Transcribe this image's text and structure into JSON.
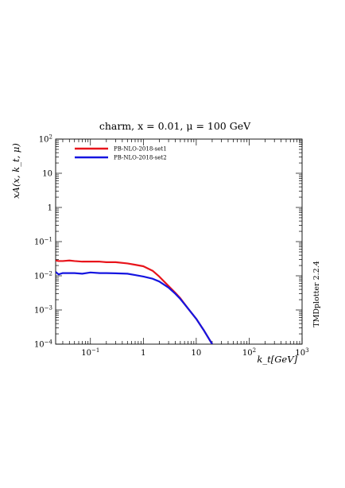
{
  "chart_data": {
    "type": "line",
    "title": "charm, x = 0.01, μ = 100 GeV",
    "xlabel": "k_t[GeV]",
    "ylabel": "xA(x, k_t, μ)",
    "xscale": "log",
    "yscale": "log",
    "xlim": [
      0.022,
      1000
    ],
    "ylim": [
      0.0001,
      100
    ],
    "x_ticks": [
      {
        "value": 0.1,
        "label": "10^-1"
      },
      {
        "value": 1,
        "label": "1"
      },
      {
        "value": 10,
        "label": "10"
      },
      {
        "value": 100,
        "label": "10^2"
      },
      {
        "value": 1000,
        "label": "10^3"
      }
    ],
    "y_ticks": [
      {
        "value": 0.0001,
        "label": "10^-4"
      },
      {
        "value": 0.001,
        "label": "10^-3"
      },
      {
        "value": 0.01,
        "label": "10^-2"
      },
      {
        "value": 0.1,
        "label": "10^-1"
      },
      {
        "value": 1,
        "label": "1"
      },
      {
        "value": 10,
        "label": "10"
      },
      {
        "value": 100,
        "label": "10^2"
      }
    ],
    "legend_position": "top-left",
    "grid": false,
    "series": [
      {
        "name": "PB-NLO-2018-set1",
        "color": "#e8141b",
        "points": [
          [
            0.022,
            0.028
          ],
          [
            0.025,
            0.027
          ],
          [
            0.03,
            0.027
          ],
          [
            0.04,
            0.028
          ],
          [
            0.05,
            0.027
          ],
          [
            0.07,
            0.026
          ],
          [
            0.1,
            0.026
          ],
          [
            0.15,
            0.026
          ],
          [
            0.2,
            0.025
          ],
          [
            0.3,
            0.025
          ],
          [
            0.5,
            0.023
          ],
          [
            0.7,
            0.021
          ],
          [
            1.0,
            0.019
          ],
          [
            1.5,
            0.014
          ],
          [
            2.0,
            0.0095
          ],
          [
            3.0,
            0.005
          ],
          [
            4.0,
            0.0032
          ],
          [
            5.0,
            0.0022
          ],
          [
            7.0,
            0.0011
          ],
          [
            10.0,
            0.00055
          ],
          [
            14.0,
            0.00025
          ],
          [
            20.0,
            0.0001
          ]
        ]
      },
      {
        "name": "PB-NLO-2018-set2",
        "color": "#1515e0",
        "points": [
          [
            0.022,
            0.013
          ],
          [
            0.025,
            0.011
          ],
          [
            0.03,
            0.012
          ],
          [
            0.04,
            0.012
          ],
          [
            0.05,
            0.012
          ],
          [
            0.07,
            0.0115
          ],
          [
            0.1,
            0.0125
          ],
          [
            0.15,
            0.012
          ],
          [
            0.2,
            0.012
          ],
          [
            0.3,
            0.0118
          ],
          [
            0.5,
            0.0115
          ],
          [
            0.7,
            0.0105
          ],
          [
            1.0,
            0.0095
          ],
          [
            1.5,
            0.0082
          ],
          [
            2.0,
            0.0068
          ],
          [
            3.0,
            0.0045
          ],
          [
            4.0,
            0.003
          ],
          [
            5.0,
            0.0021
          ],
          [
            7.0,
            0.0011
          ],
          [
            10.0,
            0.00055
          ],
          [
            14.0,
            0.00025
          ],
          [
            20.0,
            0.0001
          ]
        ]
      }
    ],
    "side_label": "TMDplotter 2.2.4"
  }
}
